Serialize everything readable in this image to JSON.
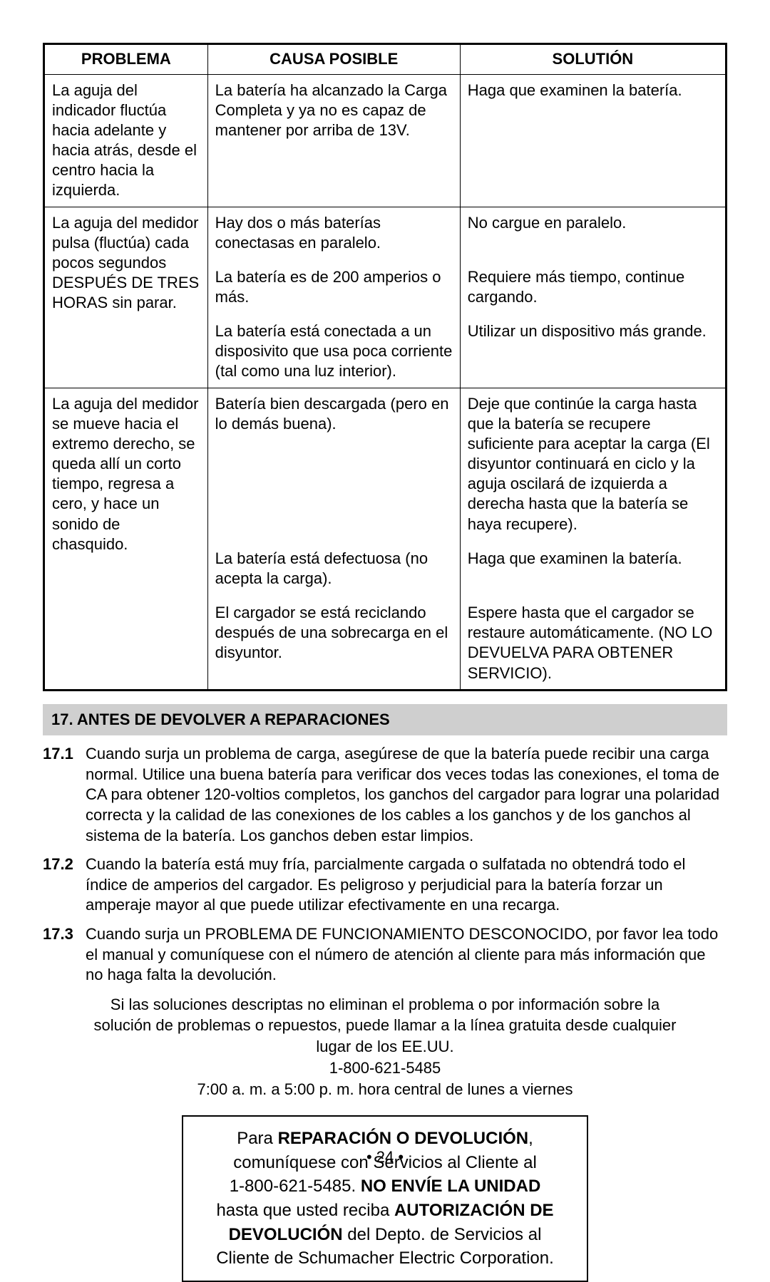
{
  "table": {
    "headers": [
      "PROBLEMA",
      "CAUSA POSIBLE",
      "SOLUTIÓN"
    ],
    "groups": [
      {
        "problema": "La aguja del indicador fluctúa hacia adelante y hacia atrás, desde el centro hacia la izquierda.",
        "rows": [
          {
            "causa": "La batería ha alcanzado la Carga Completa y ya no es capaz de mantener por arriba de 13V.",
            "solucion": "Haga que examinen la batería."
          }
        ]
      },
      {
        "problema": "La aguja del medidor pulsa (fluctúa) cada pocos segundos DESPUÉS DE TRES HORAS sin parar.",
        "rows": [
          {
            "causa": "Hay dos o más baterías conectasas en paralelo.",
            "solucion": "No cargue en paralelo."
          },
          {
            "causa": "La batería es de 200 amperios o más.",
            "solucion": "Requiere más tiempo, continue cargando."
          },
          {
            "causa": "La batería está conectada a un disposivito que usa poca corriente (tal como una luz interior).",
            "solucion": "Utilizar un dispositivo más grande."
          }
        ]
      },
      {
        "problema": "La aguja del medidor se mueve hacia el extremo derecho, se queda allí un corto tiempo, regresa a cero, y hace un sonido de chasquido.",
        "rows": [
          {
            "causa": "Batería bien descargada (pero en lo demás buena).",
            "solucion": "Deje que continúe la carga hasta que la batería se recupere suficiente para aceptar la carga (El disyuntor continuará en ciclo y la aguja oscilará de izquierda a derecha hasta que la batería se haya recupere)."
          },
          {
            "causa": "La batería está defectuosa (no acepta la carga).",
            "solucion": "Haga que examinen la batería."
          },
          {
            "causa": "El cargador se está reciclando después de una sobrecarga en el disyuntor.",
            "solucion": "Espere hasta que el cargador se restaure automáticamente. (NO LO DEVUELVA PARA OBTENER SERVICIO)."
          }
        ]
      }
    ]
  },
  "section17": {
    "header": "17.   ANTES DE DEVOLVER A REPARACIONES",
    "items": [
      {
        "num": "17.1",
        "text": "Cuando surja un problema de carga, asegúrese de que la batería puede recibir una carga normal. Utilice una buena batería para verificar dos veces todas las conexiones, el toma de CA para obtener 120-voltios completos, los ganchos del cargador para lograr una polaridad correcta y la calidad de las conexiones de los cables a los ganchos y de los ganchos al sistema de la batería. Los ganchos deben estar limpios."
      },
      {
        "num": "17.2",
        "text": "Cuando la batería está muy fría, parcialmente cargada o sulfatada no obtendrá todo el índice de amperios del cargador. Es peligroso y perjudicial para la batería forzar un amperaje mayor al que puede utilizar efectivamente en una recarga."
      },
      {
        "num": "17.3",
        "text": "Cuando surja un PROBLEMA DE FUNCIONAMIENTO DESCONOCIDO, por favor lea todo el manual y comuníquese con el número de atención al cliente para más información que no haga falta la devolución."
      }
    ]
  },
  "center": {
    "line1": "Si las soluciones descriptas no eliminan el problema o por información sobre la solución de problemas o repuestos, puede llamar a la línea gratuita desde cualquier lugar de los EE.UU.",
    "phone": "1-800-621-5485",
    "hours": "7:00 a. m. a 5:00 p. m. hora central de lunes a viernes"
  },
  "box": {
    "l1a": "Para ",
    "l1b": "REPARACIÓN O DEVOLUCIÓN",
    "l1c": ",",
    "l2": "comuníquese con Servicios al Cliente al",
    "l3a": "1-800-621-5485. ",
    "l3b": "NO ENVÍE LA UNIDAD",
    "l4a": "hasta que usted reciba ",
    "l4b": "AUTORIZACIÓN DE",
    "l5a": "DEVOLUCIÓN",
    "l5b": " del Depto. de Servicios al",
    "l6": "Cliente de Schumacher Electric Corporation."
  },
  "pagenum": "• 24 •"
}
